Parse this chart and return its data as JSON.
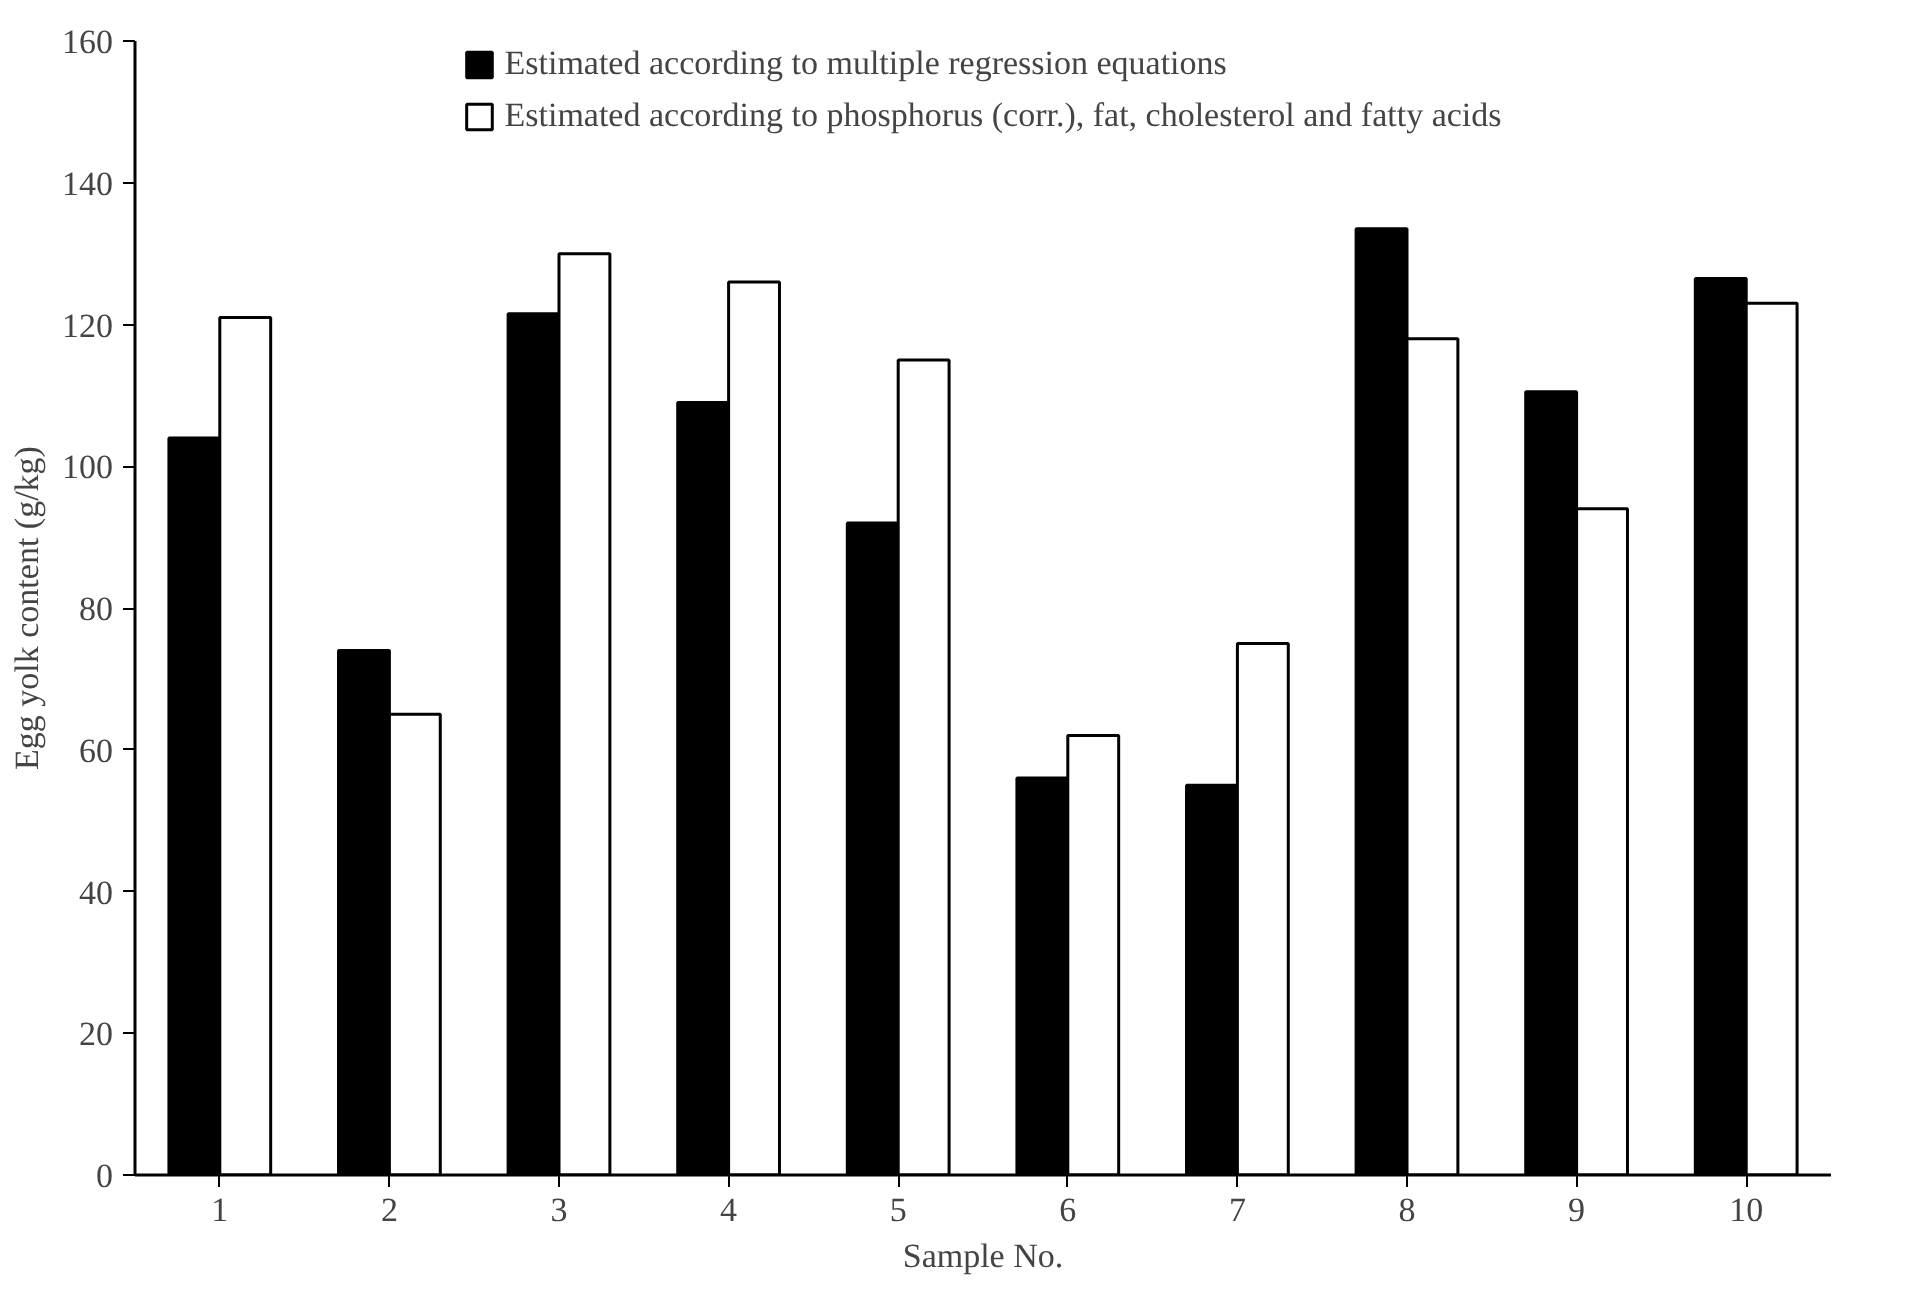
{
  "chart_data": {
    "type": "bar",
    "xlabel": "Sample No.",
    "ylabel": "Egg yolk content (g/kg)",
    "categories": [
      "1",
      "2",
      "3",
      "4",
      "5",
      "6",
      "7",
      "8",
      "9",
      "10"
    ],
    "series": [
      {
        "name": "Estimated according to multiple regression equations",
        "color": "#000000",
        "values": [
          104,
          74,
          121.5,
          109,
          92,
          56,
          55,
          133.5,
          110.5,
          126.5
        ]
      },
      {
        "name": "Estimated according to phosphorus (corr.), fat, cholesterol and fatty acids",
        "color": "#ffffff",
        "values": [
          121,
          65,
          130,
          126,
          115,
          62,
          75,
          118,
          94,
          123
        ]
      }
    ],
    "ylim": [
      0,
      160
    ],
    "yticks": [
      0,
      20,
      40,
      60,
      80,
      100,
      120,
      140,
      160
    ],
    "grid": false,
    "legend": "top"
  }
}
